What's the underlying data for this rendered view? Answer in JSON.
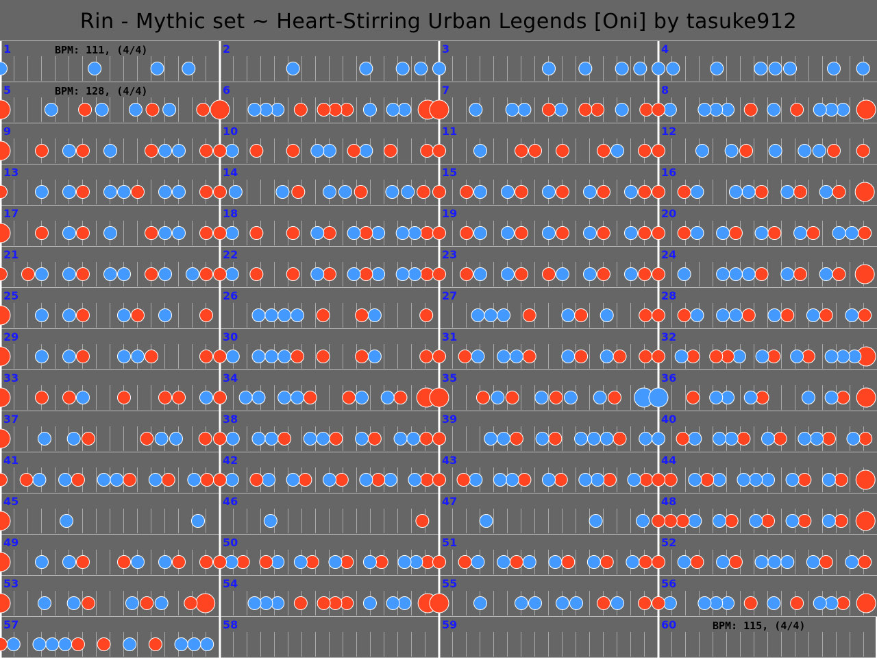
{
  "title": "Rin - Mythic set ~ Heart-Stirring Urban Legends [Oni] by tasuke912",
  "colors": {
    "background": "#666666",
    "don": "#FF4422",
    "ka": "#4499FF",
    "measure_number": "#1a1aff",
    "barline": "#ffffff",
    "gridline": "#aaaaaa"
  },
  "bpm_markers": [
    {
      "measure": 1,
      "text": "BPM: 111, (4/4)"
    },
    {
      "measure": 5,
      "text": "BPM: 128, (4/4)"
    },
    {
      "measure": 60,
      "text": "BPM: 115, (4/4)"
    }
  ],
  "note_legend": {
    "d": "don (red)",
    "k": "ka (blue)",
    "D": "big don",
    "K": "big ka"
  },
  "measures": [
    {
      "n": 1,
      "notes": "k.....k...k.k."
    },
    {
      "n": 2,
      "notes": "....k...k.kk"
    },
    {
      "n": 3,
      "notes": "k.....k.k.kk"
    },
    {
      "n": 4,
      "notes": "kk..k..kkk..k.k"
    },
    {
      "n": 5,
      "notes": "D..k.dk.kdk.d"
    },
    {
      "n": 6,
      "notes": "D..kkk.d.ddd.k.kk.D"
    },
    {
      "n": 7,
      "notes": "D..k..kk.dk.dd.k.d"
    },
    {
      "n": 8,
      "notes": "dk..kkk.d.k.d.kkk.D"
    },
    {
      "n": 9,
      "notes": "D..d.kd.k..dkk.d"
    },
    {
      "n": 10,
      "notes": "dk.d..d.kk.dk.d..d"
    },
    {
      "n": 11,
      "notes": "d..k..dd.d..dk.d"
    },
    {
      "n": 12,
      "notes": "d..k.kd.k.kkd.d"
    },
    {
      "n": 13,
      "notes": "d..k.kd.kkd.kk.d"
    },
    {
      "n": 14,
      "notes": "dk..kd.kkd.kkd"
    },
    {
      "n": 15,
      "notes": "d.dk.kd.kd.kd.kd"
    },
    {
      "n": 16,
      "notes": "d.dk..kkd.kd.kd.D"
    },
    {
      "n": 17,
      "notes": "D..d.kd.k..dkk.d"
    },
    {
      "n": 18,
      "notes": "dk.d..d.kd.kdk.kkd"
    },
    {
      "n": 19,
      "notes": "d.dk.kd.kd.kd.kd"
    },
    {
      "n": 20,
      "notes": "d.dk.kd.kd.kd.kkd"
    },
    {
      "n": 21,
      "notes": "d.dk.kd.kk.dk.kd"
    },
    {
      "n": 22,
      "notes": "dk.d..d.kd.kdk.kkd"
    },
    {
      "n": 23,
      "notes": "d.dk.kd.dk.kd.kd"
    },
    {
      "n": 24,
      "notes": "d.k..kkkd.kd.kd.D"
    },
    {
      "n": 25,
      "notes": "D..k.kd..kd.k..d"
    },
    {
      "n": 26,
      "notes": "...kkkk.d..dk...d"
    },
    {
      "n": 27,
      "notes": "...kkk.d..kd.k..d"
    },
    {
      "n": 28,
      "notes": "d.dk.kkd.kd.kd.kd"
    },
    {
      "n": 29,
      "notes": "D..k.kd..kkd...d"
    },
    {
      "n": 30,
      "notes": "dk.kkkd.d..dk...d"
    },
    {
      "n": 31,
      "notes": "d.dk.kkd..kd.kd.d"
    },
    {
      "n": 32,
      "notes": "d.kd.ddk.kd.kd.kkkD"
    },
    {
      "n": 33,
      "notes": "D..d.dk..d..dd.k"
    },
    {
      "n": 34,
      "notes": "d.kk.kkd..dk.kd.D"
    },
    {
      "n": 35,
      "notes": "D..dkd.kdk.kd.K"
    },
    {
      "n": 36,
      "notes": "K..d.kk.kd...k.kd.D"
    },
    {
      "n": 37,
      "notes": "D..k.kd...dkk.d"
    },
    {
      "n": 38,
      "notes": "dk.kkd.kkd.kd.kkd"
    },
    {
      "n": 39,
      "notes": "d...kkd.kd.kkkd.k"
    },
    {
      "n": 40,
      "notes": "k.dk.kkd.kd.kkd.kd"
    },
    {
      "n": 41,
      "notes": "d.dk.kd.kkd.kd.kd"
    },
    {
      "n": 42,
      "notes": "dk.dk.kd.kd.kdk.kd"
    },
    {
      "n": 43,
      "notes": "d.dk.kkd.kd.kkd.kd"
    },
    {
      "n": 44,
      "notes": "dd.kdk.kkk.kd.kd.D"
    },
    {
      "n": 45,
      "notes": "D..k.....k"
    },
    {
      "n": 46,
      "notes": "...k........d"
    },
    {
      "n": 47,
      "notes": "...k......k..k"
    },
    {
      "n": 48,
      "notes": "dddk.kd.kd.kd.kd.D"
    },
    {
      "n": 49,
      "notes": "D..k.kd..dk.kd.d"
    },
    {
      "n": 50,
      "notes": "dkd.dk.kd.kd.kd.kkd"
    },
    {
      "n": 51,
      "notes": "d.dk.kdk.kd.kd.kd"
    },
    {
      "n": 52,
      "notes": "d.kd.kd.kkk.kd.kd"
    },
    {
      "n": 53,
      "notes": "D..k.kd..kdk.dD"
    },
    {
      "n": 54,
      "notes": "...kkk.d.ddd.k.kk.D"
    },
    {
      "n": 55,
      "notes": "D..k..kk.kk.dk.d"
    },
    {
      "n": 56,
      "notes": "dk..kkk.d.k.d.kkd.D"
    },
    {
      "n": 57,
      "notes": "dk.kkkd.d.k.d.kkk"
    },
    {
      "n": 58,
      "notes": ""
    },
    {
      "n": 59,
      "notes": ""
    },
    {
      "n": 60,
      "notes": ""
    }
  ]
}
